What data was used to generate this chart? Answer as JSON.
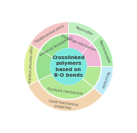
{
  "title": "Crosslinked\npolymers\nbased on\nB-O bonds",
  "inner_color": "#7de8de",
  "r_inner": 0.3,
  "r_mid": 0.55,
  "r_outer": 0.75,
  "segments": [
    {
      "t1": 90,
      "t2": 150,
      "outer_color": "#f5c5c5",
      "inner_color": "#98df90",
      "outer_label": "Good processability",
      "inner_label": "Crosslinking structure"
    },
    {
      "t1": 150,
      "t2": 205,
      "outer_color": "#dff09a",
      "inner_color": "#98df90",
      "outer_label": "High thermal stability",
      "inner_label": ""
    },
    {
      "t1": 205,
      "t2": 320,
      "outer_color": "#f2d5b0",
      "inner_color": "#b5e895",
      "outer_label": "Good mechanical properties",
      "inner_label": "Pyrolysis mechanism"
    },
    {
      "t1": 320,
      "t2": 360,
      "outer_color": "#c0ecf8",
      "inner_color": "#b5e895",
      "outer_label": "Recyclable",
      "inner_label": ""
    },
    {
      "t1": 0,
      "t2": 45,
      "outer_color": "#a8eba8",
      "inner_color": "#f0b8d5",
      "outer_label": "Reprocessable",
      "inner_label": ""
    },
    {
      "t1": 45,
      "t2": 90,
      "outer_color": "#c0f0c0",
      "inner_color": "#f0b8d5",
      "outer_label": "Repairable",
      "inner_label": "Exchange mechanism"
    }
  ],
  "background_color": "#ffffff"
}
